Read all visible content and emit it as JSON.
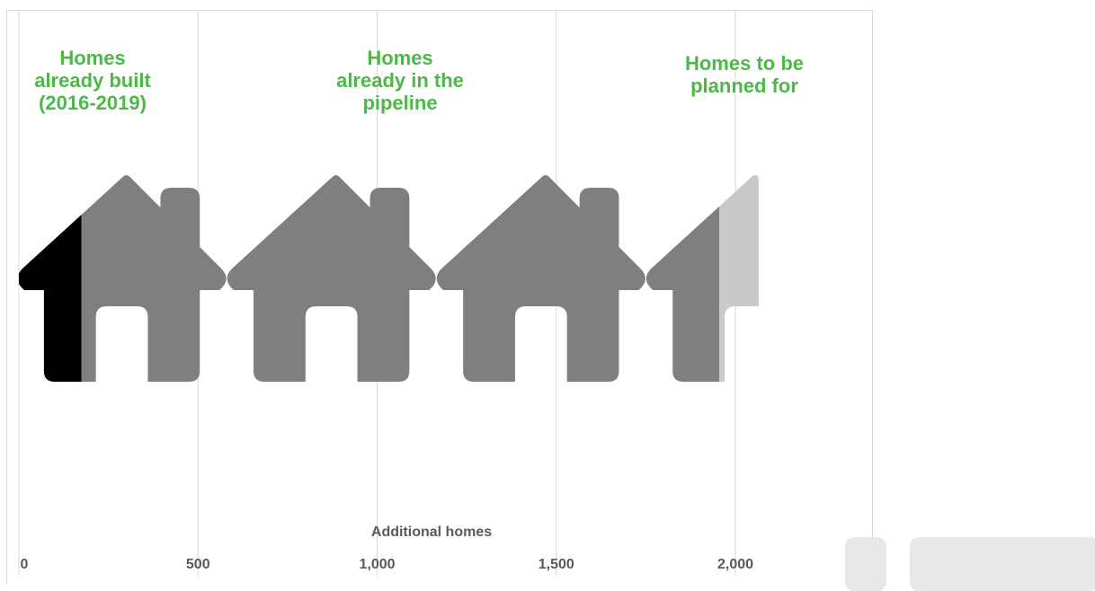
{
  "chart_data": {
    "type": "bar",
    "orientation": "horizontal-stacked",
    "xlabel": "Additional homes",
    "xlim": [
      0,
      2400
    ],
    "x_ticks": [
      0,
      500,
      1000,
      1500,
      2000
    ],
    "x_tick_labels": [
      "0",
      "500",
      "1,000",
      "1,500",
      "2,000"
    ],
    "grid": true,
    "unit_icon": "house-icon",
    "homes_per_icon": 585,
    "segments": [
      {
        "label": "Homes already built (2016-2019)",
        "lines": [
          "Homes",
          "already built",
          "(2016-2019)"
        ],
        "value": 175,
        "color": "#000000"
      },
      {
        "label": "Homes already in the pipeline",
        "lines": [
          "Homes",
          "already in the",
          "pipeline"
        ],
        "value": 1780,
        "color": "#7f7f7f"
      },
      {
        "label": "Homes to be planned for",
        "lines": [
          "Homes to be",
          "planned for"
        ],
        "value": 110,
        "color": "#c9c9c9"
      }
    ],
    "label_color": "#4cb848"
  }
}
